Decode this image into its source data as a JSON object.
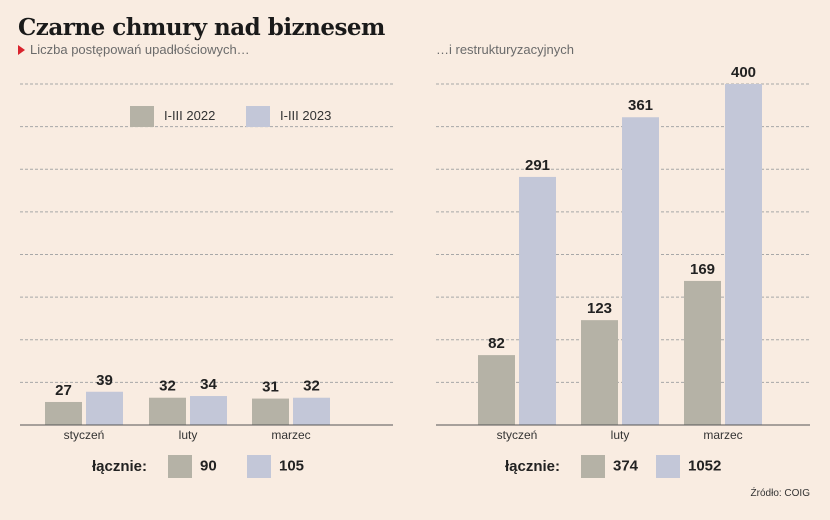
{
  "title": "Czarne chmury nad biznesem",
  "colors": {
    "series_2022": "#b5b2a6",
    "series_2023": "#c3c7d8",
    "marker": "#d9232d",
    "background": "#f9ece1"
  },
  "source": "Źródło: COIG",
  "totals_label": "łącznie:",
  "chart_data": [
    {
      "type": "bar",
      "title": "Liczba postępowań upadłościowych…",
      "categories": [
        "styczeń",
        "luty",
        "marzec"
      ],
      "series": [
        {
          "name": "I-III 2022",
          "values": [
            27,
            32,
            31
          ]
        },
        {
          "name": "I-III 2023",
          "values": [
            39,
            34,
            32
          ]
        }
      ],
      "totals": [
        "90",
        "105"
      ],
      "ylim": [
        0,
        400
      ],
      "grid": true,
      "legend": "top-left"
    },
    {
      "type": "bar",
      "title": "…i restrukturyzacyjnych",
      "categories": [
        "styczeń",
        "luty",
        "marzec"
      ],
      "series": [
        {
          "name": "I-III 2022",
          "values": [
            82,
            123,
            169
          ]
        },
        {
          "name": "I-III 2023",
          "values": [
            291,
            361,
            400
          ]
        }
      ],
      "totals": [
        "374",
        "1052"
      ],
      "ylim": [
        0,
        400
      ],
      "grid": true
    }
  ]
}
